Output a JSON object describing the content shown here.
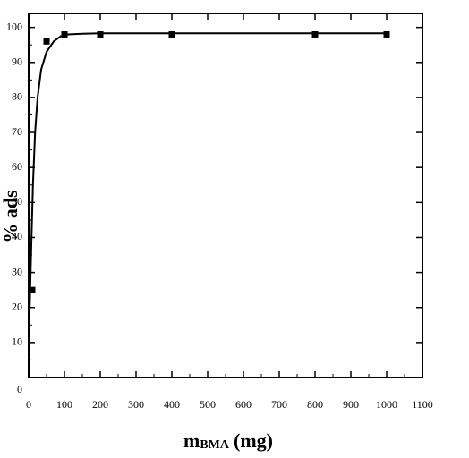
{
  "chart_data": {
    "type": "scatter",
    "x": [
      10,
      50,
      100,
      200,
      400,
      800,
      1000
    ],
    "values": [
      25,
      96,
      98,
      98,
      98,
      98,
      98
    ],
    "color": "#000000",
    "curve": {
      "x": [
        3,
        8,
        12,
        18,
        25,
        35,
        50,
        70,
        90,
        110,
        150,
        200,
        400,
        1000
      ],
      "values": [
        20,
        40,
        55,
        70,
        80,
        88,
        93,
        96,
        97.5,
        98,
        98.2,
        98.3,
        98.3,
        98.3
      ]
    },
    "xlim": [
      0,
      1100
    ],
    "ylim": [
      0,
      104
    ],
    "xticks": [
      0,
      100,
      200,
      300,
      400,
      500,
      600,
      700,
      800,
      900,
      1000,
      1100
    ],
    "yticks": [
      0,
      10,
      20,
      30,
      40,
      50,
      60,
      70,
      80,
      90,
      100
    ],
    "ylabel": "% ads",
    "xlabel": {
      "main": "m",
      "subscript": "BMA",
      "unit": "(mg)"
    }
  }
}
